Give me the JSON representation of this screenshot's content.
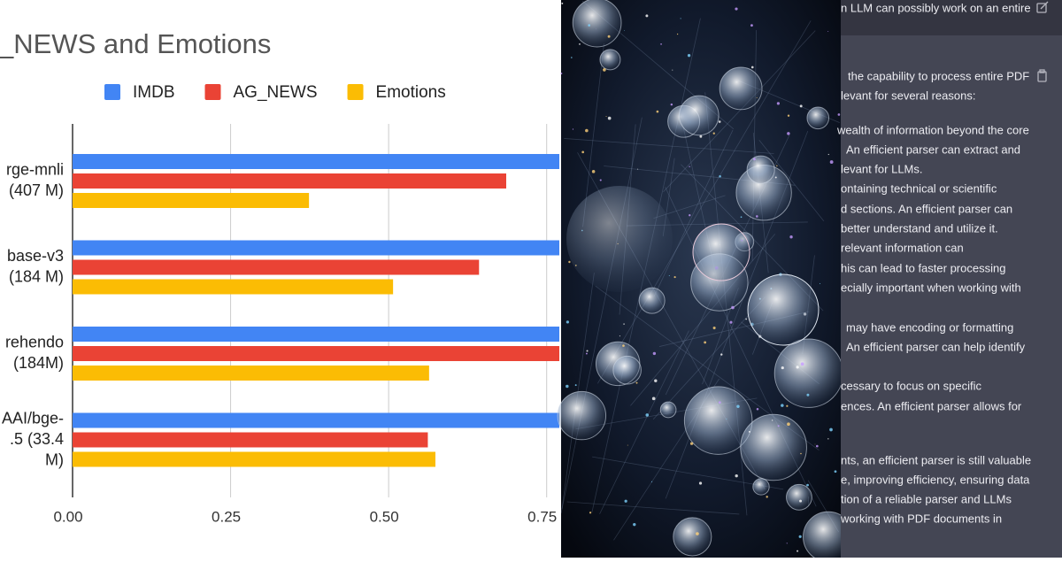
{
  "chart_data": {
    "type": "hbar",
    "title": "_NEWS and Emotions",
    "categories": [
      [
        "rge-mnli",
        "(407 M)"
      ],
      [
        "base-v3",
        "(184 M)"
      ],
      [
        "rehendo",
        "(184M)"
      ],
      [
        "AAI/bge-",
        ".5 (33.4",
        "M)"
      ]
    ],
    "series": [
      {
        "name": "IMDB",
        "color": "#4285f4",
        "values": [
          0.8,
          0.8,
          0.8,
          0.8
        ]
      },
      {
        "name": "AG_NEWS",
        "color": "#ea4335",
        "values": [
          0.686,
          0.643,
          0.8,
          0.562
        ]
      },
      {
        "name": "Emotions",
        "color": "#fbbc04",
        "values": [
          0.374,
          0.507,
          0.564,
          0.574
        ]
      }
    ],
    "xlim": [
      0,
      0.77
    ],
    "xticks": [
      {
        "value": 0,
        "label": "0.00"
      },
      0.25,
      {
        "value": 0.5,
        "label": "0.50"
      },
      0.75
    ],
    "grid": true,
    "legend": "top"
  },
  "chat": {
    "header": "n LLM can possibly work on an entire",
    "lines": [
      "the capability to process entire PDF",
      "levant for several reasons:",
      "wealth of information beyond the core",
      "An efficient parser can extract and",
      "levant for LLMs.",
      "ontaining technical or scientific",
      "d sections. An efficient parser can",
      "better understand and utilize it.",
      "relevant information can",
      "his can lead to faster processing",
      "ecially important when working with",
      "may have encoding or formatting",
      "An efficient parser can help identify",
      "cessary to focus on specific",
      "ences. An efficient parser allows for",
      "nts, an efficient parser is still valuable",
      "e, improving efficiency, ensuring data",
      "tion of a reliable parser and LLMs",
      "working with PDF documents in"
    ]
  }
}
